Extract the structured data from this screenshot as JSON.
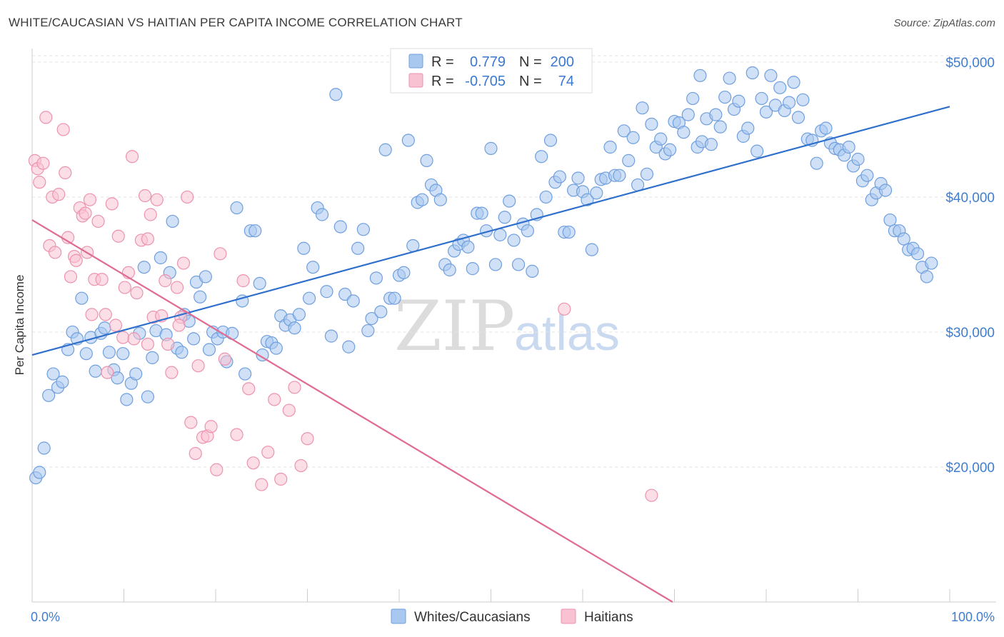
{
  "title": "WHITE/CAUCASIAN VS HAITIAN PER CAPITA INCOME CORRELATION CHART",
  "source": "Source: ZipAtlas.com",
  "watermark": {
    "part1": "ZIP",
    "part2": "atlas"
  },
  "legend": {
    "r_label": "R =",
    "n_label": "N =",
    "rows": [
      {
        "r": "0.779",
        "n": "200",
        "color": "#a9c8f0",
        "stroke": "#6f9fde"
      },
      {
        "r": "-0.705",
        "n": "74",
        "color": "#f9c2d2",
        "stroke": "#ec93ae"
      }
    ]
  },
  "bottom_legend": [
    {
      "label": "Whites/Caucasians",
      "color": "#a9c8f0",
      "stroke": "#6f9fde"
    },
    {
      "label": "Haitians",
      "color": "#f9c2d2",
      "stroke": "#ec93ae"
    }
  ],
  "chart_data": {
    "type": "scatter",
    "xlabel": "",
    "ylabel": "Per Capita Income",
    "xlim": [
      0,
      100
    ],
    "ylim": [
      10000,
      51000
    ],
    "x_ticks": [
      {
        "value": 0,
        "label": "0.0%"
      },
      {
        "value": 100,
        "label": "100.0%"
      }
    ],
    "y_ticks": [
      {
        "value": 20000,
        "label": "$20,000"
      },
      {
        "value": 30000,
        "label": "$30,000"
      },
      {
        "value": 40000,
        "label": "$40,000"
      },
      {
        "value": 50000,
        "label": "$50,000"
      }
    ],
    "grid": true,
    "series": [
      {
        "name": "Whites/Caucasians",
        "color": "#6f9fde",
        "fill": "#a9c8f0",
        "trend": {
          "x0": 0,
          "y0": 28300,
          "x1": 100,
          "y1": 46700,
          "color": "#2f6fcc"
        },
        "points": [
          [
            0.4,
            19200
          ],
          [
            0.8,
            19600
          ],
          [
            1.3,
            21400
          ],
          [
            1.8,
            25300
          ],
          [
            2.3,
            26900
          ],
          [
            2.8,
            25900
          ],
          [
            3.3,
            26300
          ],
          [
            3.9,
            28700
          ],
          [
            4.4,
            30000
          ],
          [
            4.9,
            29500
          ],
          [
            5.4,
            32500
          ],
          [
            5.9,
            28400
          ],
          [
            6.4,
            29600
          ],
          [
            6.9,
            27100
          ],
          [
            7.5,
            29900
          ],
          [
            7.9,
            30300
          ],
          [
            8.4,
            28500
          ],
          [
            8.9,
            27200
          ],
          [
            9.3,
            26600
          ],
          [
            9.9,
            28400
          ],
          [
            10.3,
            25000
          ],
          [
            10.8,
            26200
          ],
          [
            11.3,
            26900
          ],
          [
            11.7,
            29900
          ],
          [
            12.2,
            34800
          ],
          [
            12.6,
            25200
          ],
          [
            13.1,
            28100
          ],
          [
            13.5,
            30100
          ],
          [
            14.0,
            35500
          ],
          [
            14.6,
            29800
          ],
          [
            15.0,
            34400
          ],
          [
            15.3,
            38200
          ],
          [
            15.8,
            28800
          ],
          [
            16.3,
            28500
          ],
          [
            16.6,
            31300
          ],
          [
            17.1,
            30800
          ],
          [
            17.6,
            29500
          ],
          [
            17.9,
            33700
          ],
          [
            18.3,
            32600
          ],
          [
            18.9,
            34100
          ],
          [
            19.3,
            28700
          ],
          [
            19.7,
            30000
          ],
          [
            20.2,
            29500
          ],
          [
            20.8,
            30000
          ],
          [
            21.2,
            27800
          ],
          [
            21.8,
            29900
          ],
          [
            22.3,
            39200
          ],
          [
            22.9,
            32300
          ],
          [
            23.2,
            26900
          ],
          [
            23.8,
            37500
          ],
          [
            24.3,
            37500
          ],
          [
            24.8,
            33600
          ],
          [
            25.1,
            28300
          ],
          [
            25.6,
            29300
          ],
          [
            26.1,
            29200
          ],
          [
            26.6,
            28800
          ],
          [
            27.1,
            31200
          ],
          [
            27.6,
            30500
          ],
          [
            28.1,
            30900
          ],
          [
            28.6,
            30300
          ],
          [
            29.1,
            31300
          ],
          [
            29.6,
            36200
          ],
          [
            30.2,
            32500
          ],
          [
            30.6,
            34800
          ],
          [
            31.1,
            39200
          ],
          [
            31.6,
            38700
          ],
          [
            32.1,
            33000
          ],
          [
            32.6,
            29700
          ],
          [
            33.1,
            47600
          ],
          [
            33.6,
            37800
          ],
          [
            34.1,
            32800
          ],
          [
            34.5,
            28900
          ],
          [
            35.0,
            32300
          ],
          [
            35.5,
            36200
          ],
          [
            36.1,
            37600
          ],
          [
            36.6,
            30100
          ],
          [
            37.0,
            31000
          ],
          [
            37.5,
            34000
          ],
          [
            38.0,
            31500
          ],
          [
            38.5,
            43500
          ],
          [
            39.0,
            32500
          ],
          [
            39.5,
            32500
          ],
          [
            40.0,
            34200
          ],
          [
            40.5,
            34400
          ],
          [
            41.0,
            44200
          ],
          [
            41.5,
            36400
          ],
          [
            42.0,
            39600
          ],
          [
            42.5,
            39800
          ],
          [
            43.0,
            42700
          ],
          [
            43.5,
            40900
          ],
          [
            44.0,
            40500
          ],
          [
            44.5,
            39800
          ],
          [
            45.0,
            35000
          ],
          [
            45.5,
            34600
          ],
          [
            46.0,
            36000
          ],
          [
            46.5,
            36500
          ],
          [
            47.0,
            36800
          ],
          [
            47.5,
            36300
          ],
          [
            48.0,
            34700
          ],
          [
            48.5,
            38800
          ],
          [
            49.0,
            38800
          ],
          [
            49.5,
            37500
          ],
          [
            50.0,
            43600
          ],
          [
            50.5,
            35000
          ],
          [
            51.0,
            37200
          ],
          [
            51.5,
            38500
          ],
          [
            52.0,
            39700
          ],
          [
            52.5,
            36800
          ],
          [
            53.0,
            35000
          ],
          [
            53.5,
            38000
          ],
          [
            54.0,
            37500
          ],
          [
            54.5,
            34500
          ],
          [
            55.0,
            38700
          ],
          [
            55.5,
            43000
          ],
          [
            56.0,
            40000
          ],
          [
            56.5,
            44200
          ],
          [
            57.0,
            41100
          ],
          [
            57.5,
            41500
          ],
          [
            58.0,
            37400
          ],
          [
            58.5,
            37400
          ],
          [
            59.0,
            40500
          ],
          [
            59.5,
            41400
          ],
          [
            60.0,
            40400
          ],
          [
            60.5,
            39800
          ],
          [
            61.0,
            36100
          ],
          [
            61.5,
            40300
          ],
          [
            62.0,
            41300
          ],
          [
            62.5,
            41400
          ],
          [
            63.0,
            43700
          ],
          [
            63.5,
            41600
          ],
          [
            64.0,
            41600
          ],
          [
            64.5,
            44900
          ],
          [
            65.0,
            42700
          ],
          [
            65.5,
            44400
          ],
          [
            66.0,
            40900
          ],
          [
            66.5,
            46600
          ],
          [
            67.0,
            41700
          ],
          [
            67.5,
            45400
          ],
          [
            68.0,
            43700
          ],
          [
            68.5,
            44300
          ],
          [
            69.0,
            43200
          ],
          [
            69.5,
            43500
          ],
          [
            70.0,
            45600
          ],
          [
            70.5,
            45500
          ],
          [
            71.0,
            44800
          ],
          [
            71.5,
            46100
          ],
          [
            72.0,
            47300
          ],
          [
            72.5,
            43700
          ],
          [
            73.0,
            44100
          ],
          [
            73.5,
            45800
          ],
          [
            74.0,
            43900
          ],
          [
            74.5,
            46100
          ],
          [
            75.0,
            45200
          ],
          [
            75.5,
            47400
          ],
          [
            76.0,
            48800
          ],
          [
            76.5,
            46500
          ],
          [
            77.0,
            47100
          ],
          [
            77.5,
            44500
          ],
          [
            78.0,
            45100
          ],
          [
            78.5,
            49200
          ],
          [
            79.0,
            43400
          ],
          [
            79.5,
            47300
          ],
          [
            80.0,
            46300
          ],
          [
            80.5,
            49000
          ],
          [
            81.0,
            46800
          ],
          [
            81.5,
            48100
          ],
          [
            82.0,
            46400
          ],
          [
            82.5,
            47000
          ],
          [
            83.0,
            48500
          ],
          [
            83.5,
            45900
          ],
          [
            84.0,
            47200
          ],
          [
            84.5,
            44300
          ],
          [
            85.0,
            44200
          ],
          [
            85.5,
            42500
          ],
          [
            86.0,
            44900
          ],
          [
            86.5,
            45100
          ],
          [
            87.0,
            44000
          ],
          [
            87.5,
            43600
          ],
          [
            88.0,
            43500
          ],
          [
            88.5,
            43100
          ],
          [
            89.0,
            43700
          ],
          [
            89.5,
            42300
          ],
          [
            90.0,
            42800
          ],
          [
            90.5,
            41200
          ],
          [
            91.0,
            41600
          ],
          [
            91.5,
            39800
          ],
          [
            92.0,
            40300
          ],
          [
            92.5,
            41000
          ],
          [
            93.0,
            40500
          ],
          [
            93.5,
            38300
          ],
          [
            94.0,
            37500
          ],
          [
            94.5,
            37500
          ],
          [
            95.0,
            36900
          ],
          [
            95.5,
            36100
          ],
          [
            96.0,
            36200
          ],
          [
            96.5,
            35800
          ],
          [
            97.0,
            34800
          ],
          [
            97.5,
            34100
          ],
          [
            98.0,
            35100
          ],
          [
            72.8,
            49000
          ]
        ]
      },
      {
        "name": "Haitians",
        "color": "#ec93ae",
        "fill": "#f9c2d2",
        "trend": {
          "x0": 0,
          "y0": 38300,
          "x1": 69.8,
          "y1": 10000,
          "color": "#e06b93"
        },
        "points": [
          [
            0.3,
            42700
          ],
          [
            0.6,
            42100
          ],
          [
            0.8,
            41100
          ],
          [
            1.2,
            42500
          ],
          [
            1.5,
            45900
          ],
          [
            1.9,
            36400
          ],
          [
            2.2,
            40000
          ],
          [
            2.5,
            35900
          ],
          [
            2.9,
            40200
          ],
          [
            3.4,
            45000
          ],
          [
            3.6,
            41800
          ],
          [
            3.9,
            37000
          ],
          [
            4.2,
            34100
          ],
          [
            4.6,
            35600
          ],
          [
            4.8,
            35300
          ],
          [
            5.2,
            39200
          ],
          [
            5.5,
            38600
          ],
          [
            5.8,
            38800
          ],
          [
            6.3,
            39800
          ],
          [
            6.5,
            31300
          ],
          [
            6.8,
            33900
          ],
          [
            7.2,
            38200
          ],
          [
            7.6,
            33900
          ],
          [
            8.0,
            31300
          ],
          [
            8.2,
            27000
          ],
          [
            8.7,
            39500
          ],
          [
            9.1,
            30500
          ],
          [
            9.4,
            37100
          ],
          [
            9.9,
            29600
          ],
          [
            10.1,
            33300
          ],
          [
            10.5,
            34400
          ],
          [
            10.9,
            43000
          ],
          [
            11.1,
            29500
          ],
          [
            11.4,
            32900
          ],
          [
            11.9,
            36800
          ],
          [
            12.3,
            40100
          ],
          [
            12.6,
            36900
          ],
          [
            12.9,
            38700
          ],
          [
            13.2,
            31100
          ],
          [
            13.6,
            39800
          ],
          [
            14.1,
            31200
          ],
          [
            14.5,
            33800
          ],
          [
            14.8,
            29100
          ],
          [
            15.2,
            27000
          ],
          [
            15.8,
            33300
          ],
          [
            16.2,
            31100
          ],
          [
            16.5,
            35100
          ],
          [
            16.9,
            40000
          ],
          [
            17.3,
            23300
          ],
          [
            17.8,
            21000
          ],
          [
            18.1,
            27500
          ],
          [
            18.6,
            22200
          ],
          [
            19.1,
            22300
          ],
          [
            19.5,
            23000
          ],
          [
            20.1,
            19800
          ],
          [
            20.5,
            35800
          ],
          [
            21.0,
            28000
          ],
          [
            22.3,
            22400
          ],
          [
            23.0,
            33800
          ],
          [
            23.6,
            25800
          ],
          [
            24.1,
            20300
          ],
          [
            25.0,
            18700
          ],
          [
            25.7,
            21100
          ],
          [
            26.4,
            25000
          ],
          [
            27.1,
            19100
          ],
          [
            28.0,
            24200
          ],
          [
            28.6,
            25900
          ],
          [
            29.3,
            20100
          ],
          [
            30.0,
            22100
          ],
          [
            58.0,
            31700
          ],
          [
            67.5,
            17900
          ],
          [
            16.0,
            30500
          ],
          [
            12.6,
            29100
          ],
          [
            6.0,
            35900
          ]
        ]
      }
    ]
  }
}
